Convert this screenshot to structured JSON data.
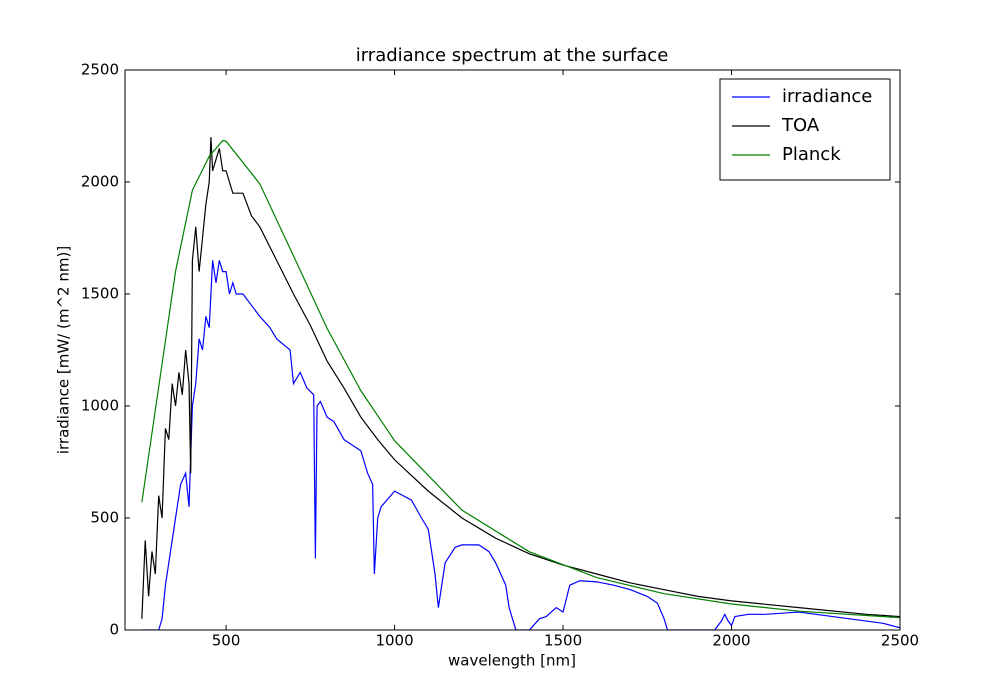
{
  "chart_data": {
    "type": "line",
    "title": "irradiance spectrum at the surface",
    "x_label": "wavelength [nm]",
    "y_label": "irradiance [mW/ (m^2 nm)]",
    "xlim": [
      200,
      2500
    ],
    "ylim": [
      0,
      2500
    ],
    "xticks": [
      500,
      1000,
      1500,
      2000,
      2500
    ],
    "yticks": [
      0,
      500,
      1000,
      1500,
      2000,
      2500
    ],
    "legend": "upper right",
    "series": [
      {
        "name": "irradiance",
        "color": "#0000ff",
        "x": [
          250,
          300,
          310,
          320,
          335,
          350,
          365,
          380,
          390,
          400,
          410,
          420,
          430,
          440,
          450,
          460,
          470,
          480,
          490,
          500,
          510,
          520,
          530,
          550,
          575,
          600,
          630,
          650,
          690,
          700,
          720,
          740,
          760,
          765,
          770,
          780,
          800,
          820,
          850,
          880,
          900,
          920,
          935,
          940,
          950,
          960,
          1000,
          1050,
          1080,
          1100,
          1120,
          1130,
          1140,
          1150,
          1180,
          1200,
          1250,
          1280,
          1300,
          1330,
          1340,
          1360,
          1400,
          1430,
          1450,
          1480,
          1500,
          1520,
          1550,
          1600,
          1650,
          1700,
          1750,
          1780,
          1800,
          1810,
          1950,
          1970,
          1980,
          1990,
          2000,
          2010,
          2050,
          2100,
          2150,
          2200,
          2300,
          2400,
          2450,
          2500
        ],
        "values": [
          0,
          0,
          50,
          200,
          350,
          500,
          650,
          700,
          550,
          1000,
          1100,
          1300,
          1250,
          1400,
          1350,
          1650,
          1550,
          1650,
          1600,
          1600,
          1500,
          1550,
          1500,
          1500,
          1450,
          1400,
          1350,
          1300,
          1250,
          1100,
          1150,
          1080,
          1050,
          320,
          1000,
          1020,
          950,
          930,
          850,
          820,
          800,
          700,
          650,
          250,
          500,
          550,
          620,
          580,
          500,
          450,
          250,
          100,
          200,
          300,
          370,
          380,
          380,
          350,
          300,
          200,
          100,
          0,
          0,
          50,
          60,
          100,
          80,
          200,
          220,
          215,
          200,
          180,
          150,
          120,
          50,
          0,
          0,
          40,
          70,
          40,
          20,
          60,
          70,
          70,
          75,
          80,
          60,
          40,
          30,
          10
        ]
      },
      {
        "name": "TOA",
        "color": "#000000",
        "x": [
          250,
          260,
          270,
          280,
          290,
          300,
          310,
          320,
          330,
          340,
          350,
          360,
          370,
          380,
          390,
          395,
          400,
          410,
          420,
          430,
          440,
          450,
          455,
          460,
          470,
          480,
          490,
          500,
          520,
          550,
          575,
          600,
          650,
          700,
          750,
          800,
          850,
          900,
          950,
          1000,
          1100,
          1200,
          1300,
          1400,
          1500,
          1600,
          1700,
          1800,
          1900,
          2000,
          2200,
          2400,
          2500
        ],
        "values": [
          50,
          400,
          150,
          350,
          250,
          600,
          500,
          900,
          850,
          1100,
          1000,
          1150,
          1050,
          1250,
          1100,
          700,
          1650,
          1800,
          1600,
          1750,
          1900,
          2000,
          2200,
          2050,
          2100,
          2150,
          2050,
          2050,
          1950,
          1950,
          1850,
          1800,
          1650,
          1500,
          1360,
          1200,
          1080,
          950,
          850,
          760,
          620,
          500,
          410,
          340,
          290,
          250,
          210,
          180,
          150,
          130,
          100,
          70,
          60
        ]
      },
      {
        "name": "Planck",
        "color": "#008000",
        "x": [
          250,
          300,
          350,
          400,
          450,
          490,
          500,
          600,
          700,
          800,
          900,
          1000,
          1200,
          1400,
          1600,
          1800,
          2000,
          2200,
          2500
        ],
        "values": [
          570,
          1085,
          1601,
          1963,
          2115,
          2185,
          2182,
          1992,
          1670,
          1346,
          1068,
          845,
          535,
          349,
          234,
          162,
          116,
          84,
          55
        ]
      }
    ]
  }
}
